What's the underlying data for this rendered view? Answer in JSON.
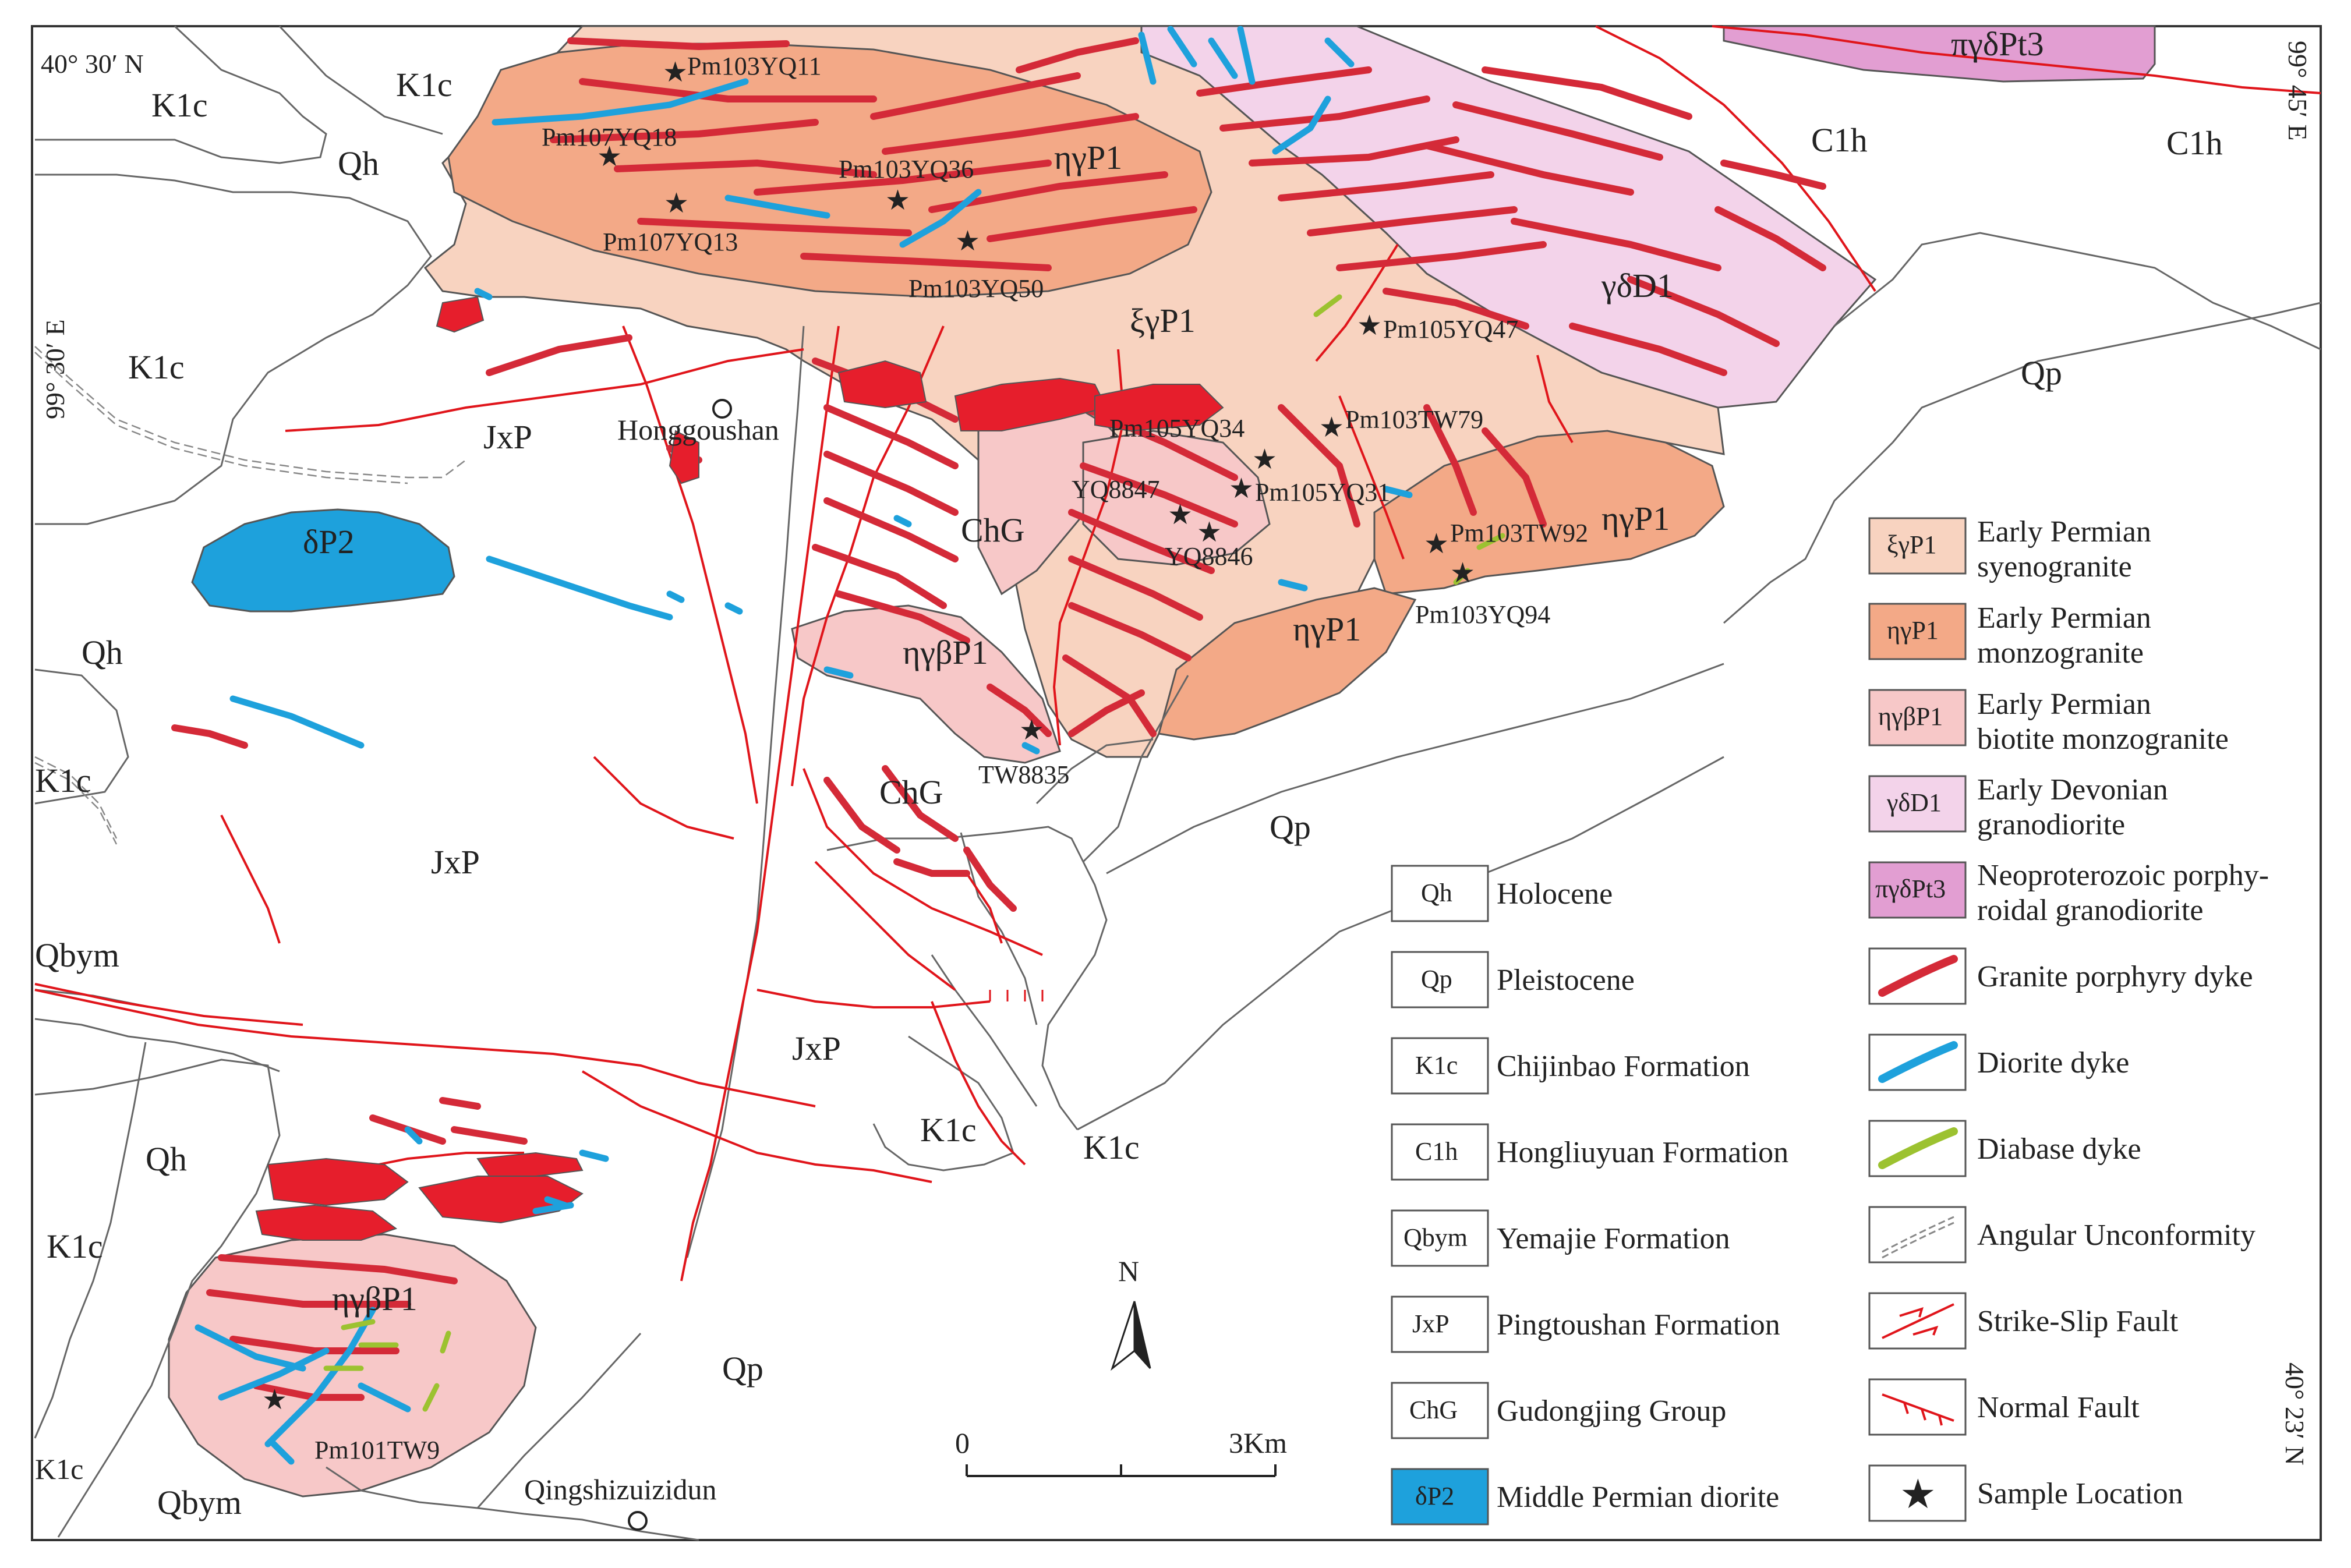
{
  "coordinates": {
    "top_left": "40° 30′ N",
    "left_vertical": "99° 30′ E",
    "right_vertical": "99° 45′ E",
    "bottom_right_vertical": "40° 23′ N"
  },
  "map_labels": {
    "k1c_a": "K1c",
    "k1c_b": "K1c",
    "k1c_c": "K1c",
    "k1c_d": "K1c",
    "k1c_e": "K1c",
    "k1c_f": "K1c",
    "k1c_g": "K1c",
    "k1c_h": "K1c",
    "qh_a": "Qh",
    "qh_b": "Qh",
    "qh_c": "Qh",
    "c1h_a": "C1h",
    "c1h_b": "C1h",
    "qp_a": "Qp",
    "qp_b": "Qp",
    "qp_c": "Qp",
    "jxp_a": "JxP",
    "jxp_b": "JxP",
    "jxp_c": "JxP",
    "chg_a": "ChG",
    "chg_b": "ChG",
    "qbym_a": "Qbym",
    "qbym_b": "Qbym",
    "dp2": "δP2",
    "eta_gamma_p1_a": "ηγP1",
    "eta_gamma_p1_b": "ηγP1",
    "eta_gamma_p1_c": "ηγP1",
    "xi_gamma_p1": "ξγP1",
    "gamma_delta_d1": "γδD1",
    "pi_gamma_delta_pt3": "πγδPt3",
    "eta_gamma_beta_p1_a": "ηγβP1",
    "eta_gamma_beta_p1_b": "ηγβP1"
  },
  "places": {
    "honggoushan": "Honggoushan",
    "qingshizuizidun": "Qingshizuizidun"
  },
  "samples": [
    {
      "label": "Pm103YQ11"
    },
    {
      "label": "Pm107YQ18"
    },
    {
      "label": "Pm103YQ36"
    },
    {
      "label": "Pm107YQ13"
    },
    {
      "label": "Pm103YQ50"
    },
    {
      "label": "Pm105YQ47"
    },
    {
      "label": "Pm103TW79"
    },
    {
      "label": "Pm105YQ34"
    },
    {
      "label": "YQ8847"
    },
    {
      "label": "Pm105YQ31"
    },
    {
      "label": "YQ8846"
    },
    {
      "label": "Pm103TW92"
    },
    {
      "label": "Pm103YQ94"
    },
    {
      "label": "TW8835"
    },
    {
      "label": "Pm101TW9"
    }
  ],
  "north_arrow": "N",
  "scale_bar": {
    "start": "0",
    "end": "3Km"
  },
  "colors": {
    "syenogranite": "#f8d3c0",
    "monzogranite": "#f3a987",
    "biotite_monzogranite": "#f7c8c8",
    "granodiorite": "#f3d3ea",
    "porphyroidal_granodiorite": "#e29ed2",
    "granite_dyke": "#d42a38",
    "diorite": "#1ea1dc",
    "diabase": "#9cc230",
    "fault": "#e0151b",
    "boundary": "#555555"
  },
  "legend_left": [
    {
      "code": "Qh",
      "label": "Holocene"
    },
    {
      "code": "Qp",
      "label": "Pleistocene"
    },
    {
      "code": "K1c",
      "label": "Chijinbao Formation"
    },
    {
      "code": "C1h",
      "label": "Hongliuyuan Formation"
    },
    {
      "code": "Qbym",
      "label": "Yemajie Formation"
    },
    {
      "code": "JxP",
      "label": "Pingtoushan Formation"
    },
    {
      "code": "ChG",
      "label": "Gudongjing Group"
    },
    {
      "code": "δP2",
      "label": "Middle Permian diorite"
    }
  ],
  "legend_right": [
    {
      "code": "ξγP1",
      "line1": "Early Permian",
      "line2": "syenogranite"
    },
    {
      "code": "ηγP1",
      "line1": "Early Permian",
      "line2": "monzogranite"
    },
    {
      "code": "ηγβP1",
      "line1": "Early Permian",
      "line2": "biotite monzogranite"
    },
    {
      "code": "γδD1",
      "line1": "Early Devonian",
      "line2": "granodiorite"
    },
    {
      "code": "πγδPt3",
      "line1": "Neoproterozoic porphy-",
      "line2": "roidal granodiorite"
    },
    {
      "icon": "granite-dyke-icon",
      "line1": "Granite porphyry dyke"
    },
    {
      "icon": "diorite-dyke-icon",
      "line1": "Diorite dyke"
    },
    {
      "icon": "diabase-dyke-icon",
      "line1": "Diabase dyke"
    },
    {
      "icon": "angular-unconformity-icon",
      "line1": "Angular Unconformity"
    },
    {
      "icon": "strike-slip-fault-icon",
      "line1": "Strike-Slip Fault"
    },
    {
      "icon": "normal-fault-icon",
      "line1": "Normal Fault"
    },
    {
      "icon": "sample-location-icon",
      "line1": "Sample Location"
    }
  ]
}
